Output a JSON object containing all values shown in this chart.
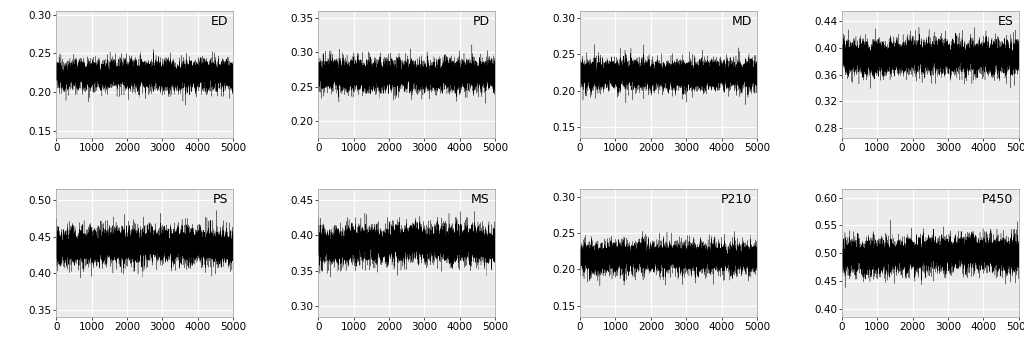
{
  "panels": [
    {
      "label": "ED",
      "ylim": [
        0.14,
        0.305
      ],
      "yticks": [
        0.15,
        0.2,
        0.25,
        0.3
      ],
      "mean": 0.222,
      "std": 0.022,
      "noise_scale": 0.012
    },
    {
      "label": "PD",
      "ylim": [
        0.175,
        0.36
      ],
      "yticks": [
        0.2,
        0.25,
        0.3,
        0.35
      ],
      "mean": 0.268,
      "std": 0.026,
      "noise_scale": 0.014
    },
    {
      "label": "MD",
      "ylim": [
        0.135,
        0.31
      ],
      "yticks": [
        0.15,
        0.2,
        0.25,
        0.3
      ],
      "mean": 0.222,
      "std": 0.024,
      "noise_scale": 0.013
    },
    {
      "label": "ES",
      "ylim": [
        0.265,
        0.455
      ],
      "yticks": [
        0.28,
        0.32,
        0.36,
        0.4,
        0.44
      ],
      "mean": 0.385,
      "std": 0.03,
      "noise_scale": 0.016
    },
    {
      "label": "PS",
      "ylim": [
        0.34,
        0.515
      ],
      "yticks": [
        0.35,
        0.4,
        0.45,
        0.5
      ],
      "mean": 0.435,
      "std": 0.028,
      "noise_scale": 0.015
    },
    {
      "label": "MS",
      "ylim": [
        0.285,
        0.465
      ],
      "yticks": [
        0.3,
        0.35,
        0.4,
        0.45
      ],
      "mean": 0.385,
      "std": 0.03,
      "noise_scale": 0.016
    },
    {
      "label": "P210",
      "ylim": [
        0.135,
        0.31
      ],
      "yticks": [
        0.15,
        0.2,
        0.25,
        0.3
      ],
      "mean": 0.215,
      "std": 0.024,
      "noise_scale": 0.013
    },
    {
      "label": "P450",
      "ylim": [
        0.385,
        0.615
      ],
      "yticks": [
        0.4,
        0.45,
        0.5,
        0.55,
        0.6
      ],
      "mean": 0.495,
      "std": 0.036,
      "noise_scale": 0.019
    }
  ],
  "n_samples": 5000,
  "xlim": [
    0,
    5000
  ],
  "xticks": [
    0,
    1000,
    2000,
    3000,
    4000,
    5000
  ],
  "bg_color": "#EBEBEB",
  "line_color": "#000000",
  "grid_color": "#FFFFFF",
  "label_fontsize": 9,
  "tick_fontsize": 7.5
}
